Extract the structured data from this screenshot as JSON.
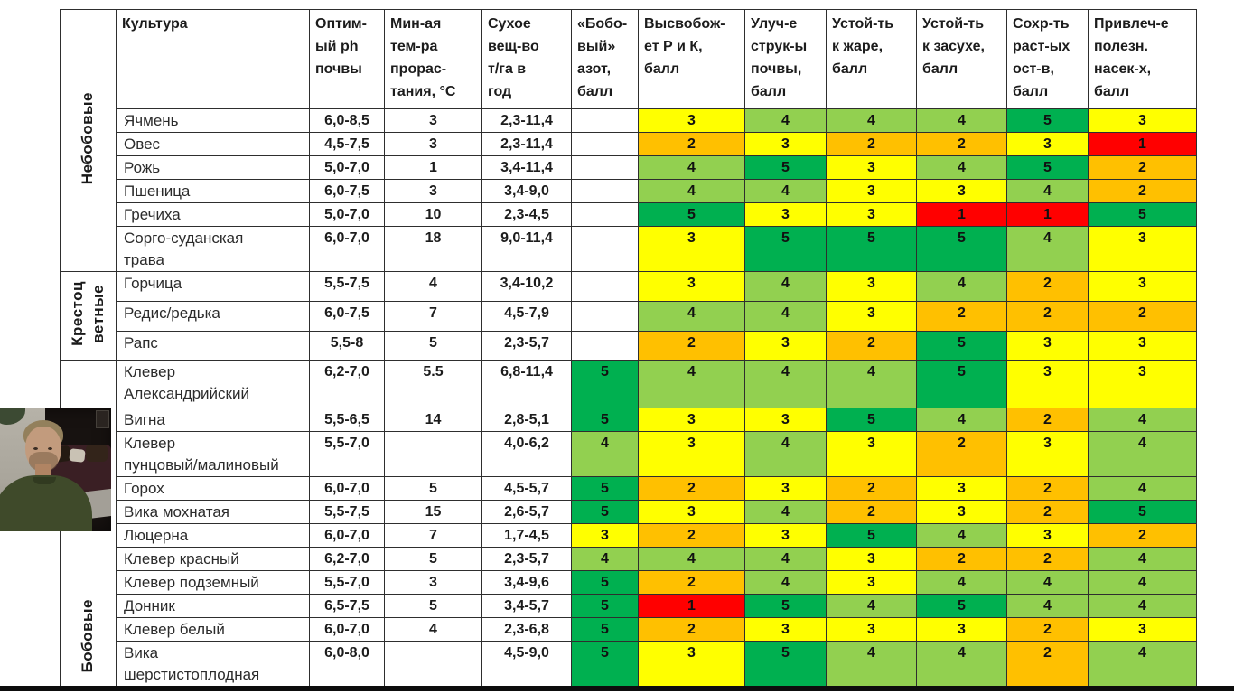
{
  "table": {
    "columns": [
      "Культура",
      "Оптим-\nый ph\nпочвы",
      "Мин-ая\nтем-ра\nпрорас-\nтания, °С",
      "Сухое\nвещ-во\nт/га в\nгод",
      "«Бобо-\nвый»\nазот,\nбалл",
      "Высвобож-\nет Р и К,\nбалл",
      "Улуч-е\nструк-ы\nпочвы,\nбалл",
      "Устой-ть\nк жаре,\nбалл",
      "Устой-ть\nк засухе,\nбалл",
      "Сохр-ть\nраст-ых\nост-в,\nбалл",
      "Привлеч-е\nполезн.\nнасек-х,\nбалл"
    ],
    "groups": [
      {
        "label": "Небобовые",
        "row_count": 6
      },
      {
        "label": "Крестоц\nветные",
        "row_count": 3
      },
      {
        "label": "Бобовые",
        "row_count": 11
      }
    ],
    "score_colors": {
      "1": "#FF0000",
      "2": "#FFC000",
      "3": "#FFFF00",
      "4": "#92D050",
      "5": "#00B050"
    },
    "rows": [
      {
        "culture": "Ячмень",
        "ph": "6,0-8,5",
        "min_temp": "3",
        "dry_matter": "2,3-11,4",
        "scores": [
          null,
          3,
          4,
          4,
          4,
          5,
          3
        ]
      },
      {
        "culture": "Овес",
        "ph": "4,5-7,5",
        "min_temp": "3",
        "dry_matter": "2,3-11,4",
        "scores": [
          null,
          2,
          3,
          2,
          2,
          3,
          1
        ]
      },
      {
        "culture": "Рожь",
        "ph": "5,0-7,0",
        "min_temp": "1",
        "dry_matter": "3,4-11,4",
        "scores": [
          null,
          4,
          5,
          3,
          4,
          5,
          2
        ]
      },
      {
        "culture": "Пшеница",
        "ph": "6,0-7,5",
        "min_temp": "3",
        "dry_matter": "3,4-9,0",
        "scores": [
          null,
          4,
          4,
          3,
          3,
          4,
          2
        ]
      },
      {
        "culture": "Гречиха",
        "ph": "5,0-7,0",
        "min_temp": "10",
        "dry_matter": "2,3-4,5",
        "scores": [
          null,
          5,
          3,
          3,
          1,
          1,
          5
        ]
      },
      {
        "culture": "Сорго-суданская\nтрава",
        "ph": "6,0-7,0",
        "min_temp": "18",
        "dry_matter": "9,0-11,4",
        "scores": [
          null,
          3,
          5,
          5,
          5,
          4,
          3
        ]
      },
      {
        "culture": "Горчица",
        "ph": "5,5-7,5",
        "min_temp": "4",
        "dry_matter": "3,4-10,2",
        "scores": [
          null,
          3,
          4,
          3,
          4,
          2,
          3
        ]
      },
      {
        "culture": "Редис/редька",
        "ph": "6,0-7,5",
        "min_temp": "7",
        "dry_matter": "4,5-7,9",
        "scores": [
          null,
          4,
          4,
          3,
          2,
          2,
          2
        ]
      },
      {
        "culture": "Рапс",
        "ph": "5,5-8",
        "min_temp": "5",
        "dry_matter": "2,3-5,7",
        "scores": [
          null,
          2,
          3,
          2,
          5,
          3,
          3
        ]
      },
      {
        "culture": "Клевер\nАлександрийский",
        "ph": "6,2-7,0",
        "min_temp": "5.5",
        "dry_matter": "6,8-11,4",
        "scores": [
          5,
          4,
          4,
          4,
          5,
          3,
          3
        ]
      },
      {
        "culture": "Вигна",
        "ph": "5,5-6,5",
        "min_temp": "14",
        "dry_matter": "2,8-5,1",
        "scores": [
          5,
          3,
          3,
          5,
          4,
          2,
          4
        ]
      },
      {
        "culture": "Клевер\nпунцовый/малиновый",
        "ph": "5,5-7,0",
        "min_temp": "",
        "dry_matter": "4,0-6,2",
        "scores": [
          4,
          3,
          4,
          3,
          2,
          3,
          4
        ]
      },
      {
        "culture": "Горох",
        "ph": "6,0-7,0",
        "min_temp": "5",
        "dry_matter": "4,5-5,7",
        "scores": [
          5,
          2,
          3,
          2,
          3,
          2,
          4
        ]
      },
      {
        "culture": "Вика мохнатая",
        "ph": "5,5-7,5",
        "min_temp": "15",
        "dry_matter": "2,6-5,7",
        "scores": [
          5,
          3,
          4,
          2,
          3,
          2,
          5
        ]
      },
      {
        "culture": "Люцерна",
        "ph": "6,0-7,0",
        "min_temp": "7",
        "dry_matter": "1,7-4,5",
        "scores": [
          3,
          2,
          3,
          5,
          4,
          3,
          2
        ]
      },
      {
        "culture": "Клевер красный",
        "ph": "6,2-7,0",
        "min_temp": "5",
        "dry_matter": "2,3-5,7",
        "scores": [
          4,
          4,
          4,
          3,
          2,
          2,
          4
        ]
      },
      {
        "culture": "Клевер подземный",
        "ph": "5,5-7,0",
        "min_temp": "3",
        "dry_matter": "3,4-9,6",
        "scores": [
          5,
          2,
          4,
          3,
          4,
          4,
          4
        ]
      },
      {
        "culture": "Донник",
        "ph": "6,5-7,5",
        "min_temp": "5",
        "dry_matter": "3,4-5,7",
        "scores": [
          5,
          1,
          5,
          4,
          5,
          4,
          4
        ]
      },
      {
        "culture": "Клевер белый",
        "ph": "6,0-7,0",
        "min_temp": "4",
        "dry_matter": "2,3-6,8",
        "scores": [
          5,
          2,
          3,
          3,
          3,
          2,
          3
        ]
      },
      {
        "culture": "Вика\nшерстистоплодная",
        "ph": "6,0-8,0",
        "min_temp": "",
        "dry_matter": "4,5-9,0",
        "scores": [
          5,
          3,
          5,
          4,
          4,
          2,
          4
        ]
      }
    ]
  },
  "webcam_overlay": {
    "visible": true
  },
  "chart_data": {
    "type": "table",
    "title": "",
    "categories": [
      "Ячмень",
      "Овес",
      "Рожь",
      "Пшеница",
      "Гречиха",
      "Сорго-суданская трава",
      "Горчица",
      "Редис/редька",
      "Рапс",
      "Клевер Александрийский",
      "Вигна",
      "Клевер пунцовый/малиновый",
      "Горох",
      "Вика мохнатая",
      "Люцерна",
      "Клевер красный",
      "Клевер подземный",
      "Донник",
      "Клевер белый",
      "Вика шерстистоплодная"
    ],
    "series": [
      {
        "name": "«Бобовый» азот, балл",
        "values": [
          null,
          null,
          null,
          null,
          null,
          null,
          null,
          null,
          null,
          5,
          5,
          4,
          5,
          5,
          3,
          4,
          5,
          5,
          5,
          5
        ]
      },
      {
        "name": "Высвобож-ет Р и К, балл",
        "values": [
          3,
          2,
          4,
          4,
          5,
          3,
          3,
          4,
          2,
          4,
          3,
          3,
          2,
          3,
          2,
          4,
          2,
          1,
          2,
          3
        ]
      },
      {
        "name": "Улуч-е струк-ы почвы, балл",
        "values": [
          4,
          3,
          5,
          4,
          3,
          5,
          4,
          4,
          3,
          4,
          3,
          4,
          3,
          4,
          3,
          4,
          4,
          5,
          3,
          5
        ]
      },
      {
        "name": "Устой-ть к жаре, балл",
        "values": [
          4,
          2,
          3,
          3,
          3,
          5,
          3,
          3,
          2,
          4,
          5,
          3,
          2,
          2,
          5,
          3,
          3,
          4,
          3,
          4
        ]
      },
      {
        "name": "Устой-ть к засухе, балл",
        "values": [
          4,
          2,
          4,
          3,
          1,
          5,
          4,
          2,
          5,
          5,
          4,
          2,
          3,
          3,
          4,
          2,
          4,
          5,
          3,
          4
        ]
      },
      {
        "name": "Сохр-ть раст-ых ост-в, балл",
        "values": [
          5,
          3,
          5,
          4,
          1,
          4,
          2,
          2,
          3,
          3,
          2,
          3,
          2,
          2,
          3,
          2,
          4,
          4,
          2,
          2
        ]
      },
      {
        "name": "Привлеч-е полезн. насек-х, балл",
        "values": [
          3,
          1,
          2,
          2,
          5,
          3,
          3,
          2,
          3,
          3,
          4,
          4,
          4,
          5,
          2,
          4,
          4,
          4,
          3,
          4
        ]
      }
    ]
  }
}
